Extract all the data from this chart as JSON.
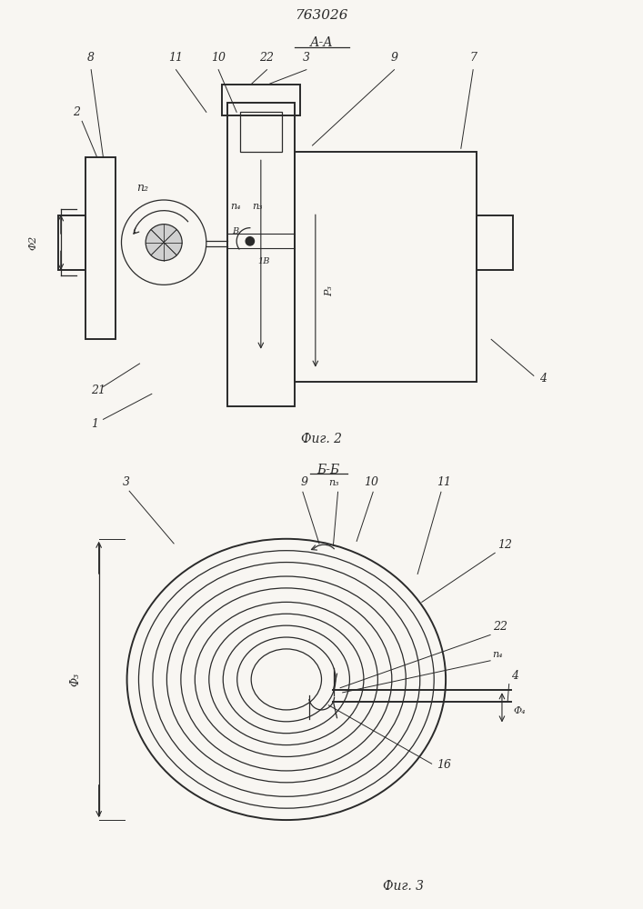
{
  "patent_number": "763026",
  "fig2_title": "А-А",
  "fig3_title": "Б-Б",
  "fig2_caption": "Фиг. 2",
  "fig3_caption": "Фиг. 3",
  "bg_color": "#f8f6f2",
  "line_color": "#2a2a2a"
}
